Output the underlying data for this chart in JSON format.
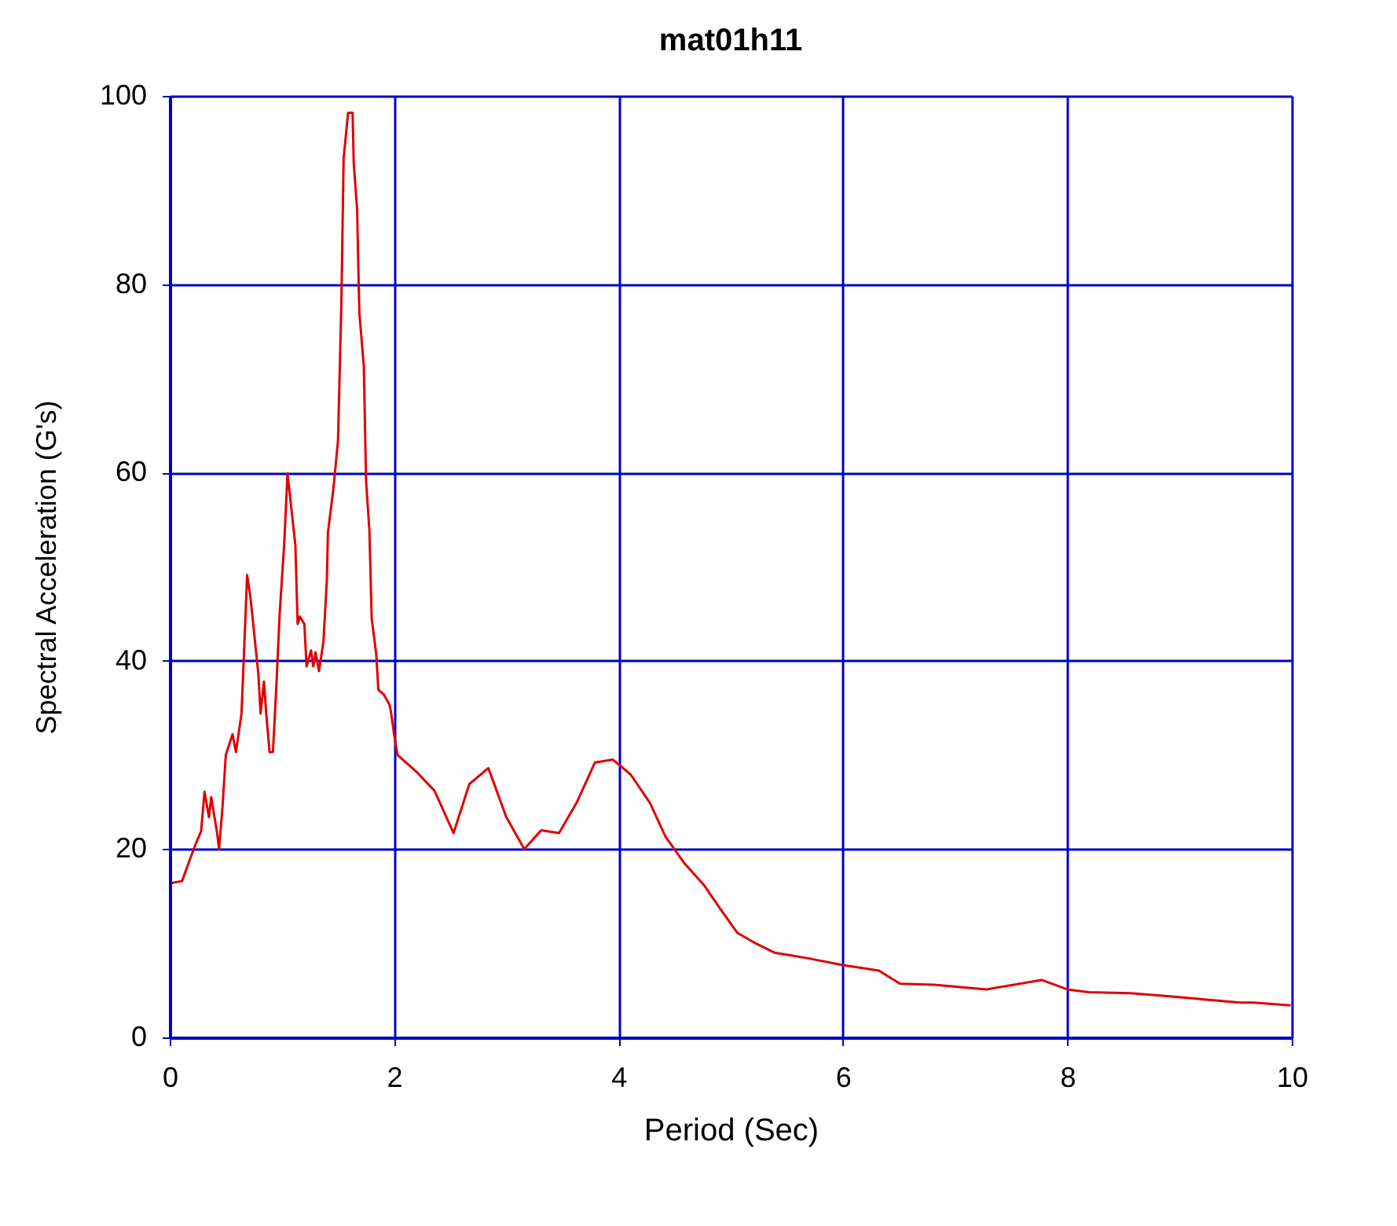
{
  "chart_data": {
    "type": "line",
    "title": "mat01h11",
    "xlabel": "Period (Sec)",
    "ylabel": "Spectral Acceleration (G's)",
    "x": [
      0.02,
      0.11,
      0.18,
      0.23,
      0.28,
      0.31,
      0.35,
      0.37,
      0.42,
      0.44,
      0.47,
      0.5,
      0.56,
      0.59,
      0.64,
      0.69,
      0.72,
      0.79,
      0.81,
      0.84,
      0.86,
      0.89,
      0.92,
      0.95,
      0.98,
      1.02,
      1.05,
      1.12,
      1.14,
      1.16,
      1.2,
      1.22,
      1.26,
      1.28,
      1.3,
      1.33,
      1.37,
      1.4,
      1.41,
      1.46,
      1.5,
      1.53,
      1.55,
      1.59,
      1.63,
      1.64,
      1.67,
      1.69,
      1.73,
      1.75,
      1.78,
      1.8,
      1.84,
      1.86,
      1.91,
      1.96,
      1.97,
      2.0,
      2.03,
      2.2,
      2.36,
      2.53,
      2.67,
      2.84,
      3.0,
      3.16,
      3.31,
      3.47,
      3.63,
      3.79,
      3.95,
      4.11,
      4.28,
      4.42,
      4.58,
      4.76,
      4.91,
      5.06,
      5.22,
      5.39,
      5.69,
      5.99,
      6.32,
      6.51,
      6.81,
      7.28,
      7.77,
      8.0,
      8.19,
      8.56,
      8.87,
      9.54,
      9.66,
      9.99
    ],
    "series": [
      {
        "color": "#e00000",
        "values": [
          16.4,
          16.6,
          18.9,
          20.5,
          21.9,
          26.1,
          23.4,
          25.5,
          21.9,
          20.0,
          24.4,
          30.0,
          32.2,
          30.3,
          34.4,
          49.1,
          46.7,
          38.6,
          34.4,
          37.8,
          34.4,
          30.3,
          30.3,
          37.2,
          45.0,
          52.3,
          59.9,
          52.3,
          43.9,
          44.7,
          43.9,
          39.4,
          41.1,
          39.4,
          40.9,
          38.9,
          42.0,
          48.4,
          53.6,
          58.4,
          63.4,
          78.0,
          93.4,
          98.2,
          98.2,
          92.9,
          88.0,
          77.0,
          71.3,
          59.1,
          53.8,
          44.5,
          40.8,
          36.9,
          36.4,
          35.3,
          34.7,
          32.2,
          30.0,
          28.2,
          26.2,
          21.7,
          26.9,
          28.6,
          23.4,
          20.0,
          22.0,
          21.7,
          25.0,
          29.2,
          29.5,
          27.9,
          24.9,
          21.3,
          18.6,
          16.2,
          13.6,
          11.1,
          10.0,
          9.0,
          8.4,
          7.7,
          7.1,
          5.7,
          5.6,
          5.1,
          6.1,
          5.1,
          4.8,
          4.7,
          4.4,
          3.7,
          3.7,
          3.4
        ]
      }
    ],
    "xlim": [
      0,
      10
    ],
    "xticks": [
      0,
      2,
      4,
      6,
      8,
      10
    ],
    "ylim": [
      0,
      100
    ],
    "yticks": [
      0,
      20,
      40,
      60,
      80,
      100
    ],
    "grid": true,
    "legend": false,
    "line_style": "solid"
  }
}
